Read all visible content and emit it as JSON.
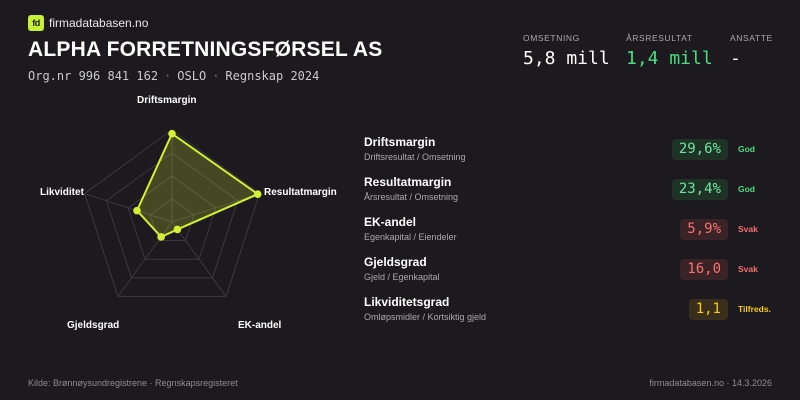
{
  "brand": {
    "logo_text": "fd",
    "site_name": "firmadatabasen.no"
  },
  "company": {
    "name": "ALPHA FORRETNINGSFØRSEL AS",
    "org_nr": "Org.nr 996 841 162",
    "city": "OSLO",
    "year": "Regnskap 2024"
  },
  "kpis": [
    {
      "label": "OMSETNING",
      "value": "5,8 mill"
    },
    {
      "label": "ÅRSRESULTAT",
      "value": "1,4 mill"
    },
    {
      "label": "ANSATTE",
      "value": "-"
    }
  ],
  "chart_data": {
    "type": "radar",
    "axes": [
      "Driftsmargin",
      "Resultatmargin",
      "EK-andel",
      "Gjeldsgrad",
      "Likviditet"
    ],
    "values": [
      0.96,
      0.98,
      0.1,
      0.2,
      0.4
    ],
    "colors": {
      "stroke": "#d4f031",
      "fill": "rgba(212,240,49,0.22)",
      "grid": "#3a383f"
    }
  },
  "metrics": [
    {
      "name": "Driftsmargin",
      "sub": "Driftsresultat / Omsetning",
      "value": "29,6%",
      "status": "God",
      "level": "good"
    },
    {
      "name": "Resultatmargin",
      "sub": "Årsresultat / Omsetning",
      "value": "23,4%",
      "status": "God",
      "level": "good"
    },
    {
      "name": "EK-andel",
      "sub": "Egenkapital / Eiendeler",
      "value": "5,9%",
      "status": "Svak",
      "level": "weak"
    },
    {
      "name": "Gjeldsgrad",
      "sub": "Gjeld / Egenkapital",
      "value": "16,0",
      "status": "Svak",
      "level": "weak"
    },
    {
      "name": "Likviditetsgrad",
      "sub": "Omløpsmidler / Kortsiktig gjeld",
      "value": "1,1",
      "status": "Tilfreds.",
      "level": "ok"
    }
  ],
  "footer": {
    "source": "Kilde: Brønnøysundregistrene · Regnskapsregisteret",
    "site_date": "firmadatabasen.no · 14.3.2026"
  }
}
